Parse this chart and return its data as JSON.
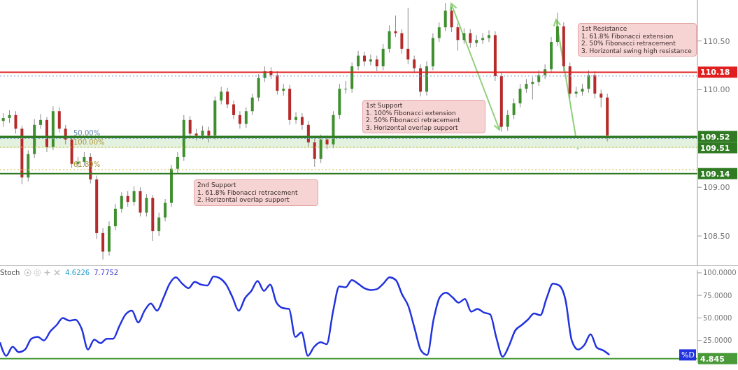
{
  "chart_data": [
    {
      "type": "candlestick",
      "categories": [
        null,
        null,
        null,
        null,
        null,
        null,
        null,
        null,
        null,
        null,
        null,
        null,
        null,
        null,
        null,
        null,
        null,
        null,
        null,
        null,
        null,
        null,
        null,
        null,
        null,
        null,
        null,
        null,
        null,
        null,
        null,
        null,
        null,
        null,
        null,
        null,
        null,
        null,
        null,
        null,
        null,
        null,
        null,
        null,
        null,
        null,
        null,
        null,
        null,
        null,
        null,
        null,
        null,
        null,
        null,
        null,
        null,
        null,
        null,
        null,
        null,
        null,
        null,
        null,
        null,
        null,
        null,
        null,
        null,
        null,
        null,
        null,
        null,
        null,
        null,
        null,
        null,
        null,
        null,
        null,
        null,
        null,
        null,
        null,
        null,
        null,
        null,
        null,
        null,
        null,
        null,
        null,
        null,
        null,
        null,
        null,
        null,
        null,
        null,
        null,
        null,
        null,
        null,
        null,
        null,
        null,
        null,
        null,
        null,
        null,
        null,
        null
      ],
      "ohlc": [
        [
          109.68,
          109.76,
          109.62,
          109.71
        ],
        [
          109.71,
          109.79,
          109.66,
          109.74
        ],
        [
          109.74,
          109.78,
          109.55,
          109.6
        ],
        [
          109.6,
          109.63,
          109.03,
          109.1
        ],
        [
          109.1,
          109.38,
          109.06,
          109.34
        ],
        [
          109.34,
          109.7,
          109.3,
          109.64
        ],
        [
          109.64,
          109.75,
          109.6,
          109.69
        ],
        [
          109.69,
          109.72,
          109.36,
          109.41
        ],
        [
          109.41,
          109.83,
          109.38,
          109.78
        ],
        [
          109.78,
          109.82,
          109.56,
          109.6
        ],
        [
          109.6,
          109.64,
          109.44,
          109.49
        ],
        [
          109.49,
          109.53,
          109.2,
          109.24
        ],
        [
          109.24,
          109.31,
          109.2,
          109.26
        ],
        [
          109.26,
          109.36,
          109.22,
          109.31
        ],
        [
          109.31,
          109.35,
          109.04,
          109.08
        ],
        [
          109.08,
          109.12,
          108.47,
          108.53
        ],
        [
          108.53,
          108.58,
          108.26,
          108.34
        ],
        [
          108.34,
          108.65,
          108.3,
          108.6
        ],
        [
          108.6,
          108.83,
          108.56,
          108.78
        ],
        [
          108.78,
          108.95,
          108.74,
          108.91
        ],
        [
          108.91,
          108.96,
          108.8,
          108.85
        ],
        [
          108.85,
          109.01,
          108.81,
          108.96
        ],
        [
          108.96,
          109.0,
          108.7,
          108.74
        ],
        [
          108.74,
          108.93,
          108.7,
          108.89
        ],
        [
          108.89,
          108.92,
          108.45,
          108.55
        ],
        [
          108.55,
          108.74,
          108.5,
          108.69
        ],
        [
          108.69,
          108.88,
          108.65,
          108.84
        ],
        [
          108.84,
          109.23,
          108.8,
          109.19
        ],
        [
          109.19,
          109.36,
          109.14,
          109.31
        ],
        [
          109.31,
          109.74,
          109.27,
          109.69
        ],
        [
          109.69,
          109.73,
          109.5,
          109.55
        ],
        [
          109.55,
          109.6,
          109.48,
          109.53
        ],
        [
          109.53,
          109.63,
          109.49,
          109.58
        ],
        [
          109.58,
          109.62,
          109.46,
          109.53
        ],
        [
          109.53,
          109.93,
          109.49,
          109.89
        ],
        [
          109.89,
          110.03,
          109.85,
          109.98
        ],
        [
          109.98,
          110.02,
          109.81,
          109.85
        ],
        [
          109.85,
          109.89,
          109.7,
          109.74
        ],
        [
          109.74,
          109.78,
          109.6,
          109.65
        ],
        [
          109.65,
          109.82,
          109.61,
          109.78
        ],
        [
          109.78,
          109.96,
          109.74,
          109.92
        ],
        [
          109.92,
          110.16,
          109.88,
          110.12
        ],
        [
          110.12,
          110.24,
          110.08,
          110.19
        ],
        [
          110.19,
          110.23,
          110.11,
          110.15
        ],
        [
          110.15,
          110.19,
          109.95,
          109.99
        ],
        [
          109.99,
          110.06,
          109.94,
          110.01
        ],
        [
          110.01,
          110.05,
          109.64,
          109.69
        ],
        [
          109.69,
          109.77,
          109.65,
          109.72
        ],
        [
          109.72,
          109.76,
          109.59,
          109.64
        ],
        [
          109.64,
          109.68,
          109.41,
          109.46
        ],
        [
          109.46,
          109.5,
          109.21,
          109.29
        ],
        [
          109.29,
          109.54,
          109.25,
          109.49
        ],
        [
          109.49,
          109.53,
          109.39,
          109.44
        ],
        [
          109.44,
          109.78,
          109.4,
          109.74
        ],
        [
          109.74,
          110.06,
          109.7,
          110.01
        ],
        [
          110.01,
          110.09,
          109.96,
          110.01
        ],
        [
          110.01,
          110.28,
          109.97,
          110.24
        ],
        [
          110.24,
          110.4,
          110.2,
          110.35
        ],
        [
          110.35,
          110.39,
          110.24,
          110.29
        ],
        [
          110.29,
          110.36,
          110.25,
          110.31
        ],
        [
          110.31,
          110.35,
          110.19,
          110.24
        ],
        [
          110.24,
          110.47,
          110.2,
          110.42
        ],
        [
          110.42,
          110.66,
          110.38,
          110.6
        ],
        [
          110.6,
          110.76,
          110.54,
          110.58
        ],
        [
          110.58,
          110.62,
          110.37,
          110.42
        ],
        [
          110.42,
          110.84,
          110.26,
          110.31
        ],
        [
          110.31,
          110.35,
          110.17,
          110.22
        ],
        [
          110.22,
          110.26,
          109.93,
          109.98
        ],
        [
          109.98,
          110.29,
          109.94,
          110.24
        ],
        [
          110.24,
          110.58,
          110.2,
          110.53
        ],
        [
          110.53,
          110.69,
          110.49,
          110.64
        ],
        [
          110.64,
          110.89,
          110.6,
          110.81
        ],
        [
          110.81,
          110.85,
          110.59,
          110.64
        ],
        [
          110.64,
          110.68,
          110.4,
          110.51
        ],
        [
          110.51,
          110.63,
          110.47,
          110.58
        ],
        [
          110.58,
          110.62,
          110.43,
          110.48
        ],
        [
          110.48,
          110.56,
          110.44,
          110.51
        ],
        [
          110.51,
          110.58,
          110.47,
          110.53
        ],
        [
          110.53,
          110.61,
          110.49,
          110.56
        ],
        [
          110.56,
          110.6,
          110.09,
          110.14
        ],
        [
          110.14,
          110.18,
          109.57,
          109.62
        ],
        [
          109.62,
          109.79,
          109.58,
          109.74
        ],
        [
          109.74,
          109.91,
          109.7,
          109.86
        ],
        [
          109.86,
          110.06,
          109.82,
          110.01
        ],
        [
          110.01,
          110.11,
          109.97,
          110.06
        ],
        [
          110.06,
          110.13,
          109.9,
          110.08
        ],
        [
          110.08,
          110.2,
          110.04,
          110.15
        ],
        [
          110.15,
          110.26,
          110.11,
          110.21
        ],
        [
          110.21,
          110.54,
          110.17,
          110.49
        ],
        [
          110.49,
          110.79,
          110.45,
          110.65
        ],
        [
          110.65,
          110.69,
          110.19,
          110.24
        ],
        [
          110.24,
          110.28,
          109.91,
          109.96
        ],
        [
          109.96,
          110.03,
          109.92,
          109.98
        ],
        [
          109.98,
          110.06,
          109.94,
          110.01
        ],
        [
          110.01,
          110.2,
          109.97,
          110.15
        ],
        [
          110.15,
          110.19,
          109.91,
          109.96
        ],
        [
          109.96,
          110.0,
          109.82,
          109.92
        ],
        [
          109.92,
          109.96,
          109.47,
          109.53
        ],
        null,
        null,
        null,
        null,
        null,
        null,
        null,
        null,
        null,
        null,
        null,
        null,
        null,
        null
      ],
      "ylim": [
        108.2,
        110.92
      ],
      "yticks": [
        {
          "value": 108.5,
          "label": "108.50"
        },
        {
          "value": 109,
          "label": "109.00"
        },
        {
          "value": 110,
          "label": "110.00"
        },
        {
          "value": 110.5,
          "label": "110.50"
        }
      ],
      "tick_labels": "y",
      "bands": [
        {
          "axis": "y",
          "from": 109.4,
          "to": 109.52,
          "color": "#e3f1df"
        }
      ],
      "ref_lines": [
        {
          "axis": "y",
          "value": 110.18,
          "label": "110.18",
          "color": "#e02020",
          "line_style": "solid"
        },
        {
          "axis": "y",
          "value": 109.52,
          "label": "109.52",
          "color": "#2f7a22",
          "line_style": "solid"
        },
        {
          "axis": "y",
          "value": 109.51,
          "label": "109.51",
          "color": "#2f7a22",
          "line_style": "solid"
        },
        {
          "axis": "y",
          "value": 109.14,
          "label": "109.14",
          "color": "#2f7a22",
          "line_style": "solid"
        },
        {
          "axis": "y",
          "value": 110.14,
          "color": "#8fb4e0",
          "line_style": "dotted"
        },
        {
          "axis": "y",
          "value": 109.5,
          "color": "#7fa8d8",
          "line_style": "dotted"
        },
        {
          "axis": "y",
          "value": 109.41,
          "color": "#d8c050",
          "line_style": "dotted"
        },
        {
          "axis": "y",
          "value": 109.18,
          "color": "#d8c050",
          "line_style": "dotted"
        }
      ],
      "annotations": [
        {
          "text": "50.00%",
          "y": 109.5
        },
        {
          "text": "100.00%",
          "y": 109.41
        },
        {
          "text": "61.80%",
          "y": 109.18
        },
        "1st Support\n1. 100% Fibonacci extension\n2. 50% Fibonacci retracement\n3. Horizontal overlap support",
        "2nd Support\n1. 61.8% Fibonacci retracement\n2. Horizontal overlap support",
        "1st Resistance\n1. 61.8% Fibonacci extension\n2. 50% Fibonacci retracement\n3. Horizontal swing high resistance"
      ]
    },
    {
      "type": "line",
      "categories": [
        null,
        null,
        null,
        null,
        null,
        null,
        null,
        null,
        null,
        null,
        null,
        null,
        null,
        null,
        null,
        null,
        null,
        null,
        null,
        null,
        null,
        null,
        null,
        null,
        null,
        null,
        null,
        null,
        null,
        null,
        null,
        null,
        null,
        null,
        null,
        null,
        null,
        null,
        null,
        null,
        null,
        null,
        null,
        null,
        null,
        null,
        null,
        null,
        null,
        null,
        null,
        null,
        null,
        null,
        null,
        null,
        null,
        null,
        null,
        null,
        null,
        null,
        null,
        null,
        null,
        null,
        null,
        null,
        null,
        null,
        null,
        null,
        null,
        null,
        null,
        null,
        null,
        null,
        null,
        null,
        null,
        null,
        null,
        null,
        null,
        null,
        null,
        null,
        null,
        null,
        null,
        null,
        null,
        null,
        null,
        null,
        null,
        null,
        null,
        null,
        null,
        null,
        null,
        null,
        null,
        null,
        null,
        null,
        null,
        null,
        null,
        null
      ],
      "series": [
        {
          "name": "%D",
          "color": "#2233dd",
          "values": [
            23,
            8,
            18,
            12,
            15,
            27,
            29,
            25,
            35,
            42,
            50,
            47,
            48,
            38,
            15,
            26,
            22,
            27,
            27,
            41,
            54,
            58,
            45,
            58,
            66,
            58,
            72,
            88,
            95,
            88,
            83,
            90,
            87,
            86,
            96,
            94,
            87,
            73,
            58,
            72,
            80,
            91,
            80,
            87,
            67,
            61,
            60,
            29,
            34,
            8,
            18,
            23,
            21,
            57,
            85,
            84,
            92,
            88,
            83,
            81,
            82,
            88,
            95,
            92,
            76,
            63,
            38,
            14,
            9,
            48,
            73,
            78,
            73,
            67,
            71,
            57,
            60,
            56,
            54,
            28,
            7,
            19,
            36,
            42,
            48,
            55,
            53,
            72,
            88,
            86,
            70,
            25,
            15,
            20,
            32,
            17,
            14,
            9,
            null,
            null,
            null,
            null,
            null,
            null,
            null,
            null,
            null,
            null,
            null,
            null,
            null,
            null
          ]
        }
      ],
      "ylim": [
        0,
        103
      ],
      "yticks": [
        {
          "value": 25,
          "label": "25.0000"
        },
        {
          "value": 50,
          "label": "50.0000"
        },
        {
          "value": 75,
          "label": "75.0000"
        },
        {
          "value": 100,
          "label": "100.0000"
        }
      ],
      "tick_labels": "y",
      "ref_lines": [
        {
          "axis": "y",
          "value": 4.845,
          "label": "4.845",
          "color": "#4a9a3a",
          "line_style": "solid"
        }
      ],
      "annotations": [
        "Stoch",
        "4.6226",
        "7.7752"
      ]
    }
  ]
}
